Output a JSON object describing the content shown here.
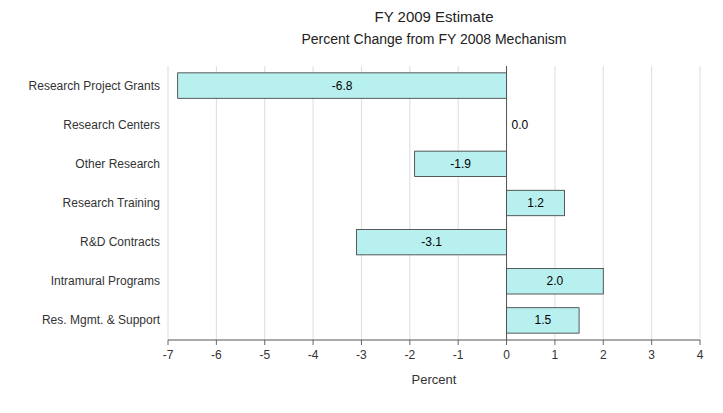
{
  "chart_data": {
    "type": "bar",
    "orientation": "horizontal",
    "title": "FY 2009 Estimate",
    "subtitle": "Percent Change from FY 2008 Mechanism",
    "xlabel": "Percent",
    "categories": [
      "Research Project Grants",
      "Research Centers",
      "Other Research",
      "Research Training",
      "R&D Contracts",
      "Intramural Programs",
      "Res. Mgmt. & Support"
    ],
    "values": [
      -6.8,
      0.0,
      -1.9,
      1.2,
      -3.1,
      2.0,
      1.5
    ],
    "value_labels": [
      "-6.8",
      "0.0",
      "-1.9",
      "1.2",
      "-3.1",
      "2.0",
      "1.5"
    ],
    "color": "#b8f0f0",
    "xlim": [
      -7,
      4
    ],
    "xticks": [
      -7,
      -6,
      -5,
      -4,
      -3,
      -2,
      -1,
      0,
      1,
      2,
      3,
      4
    ],
    "grid": true,
    "data_labels": true
  }
}
